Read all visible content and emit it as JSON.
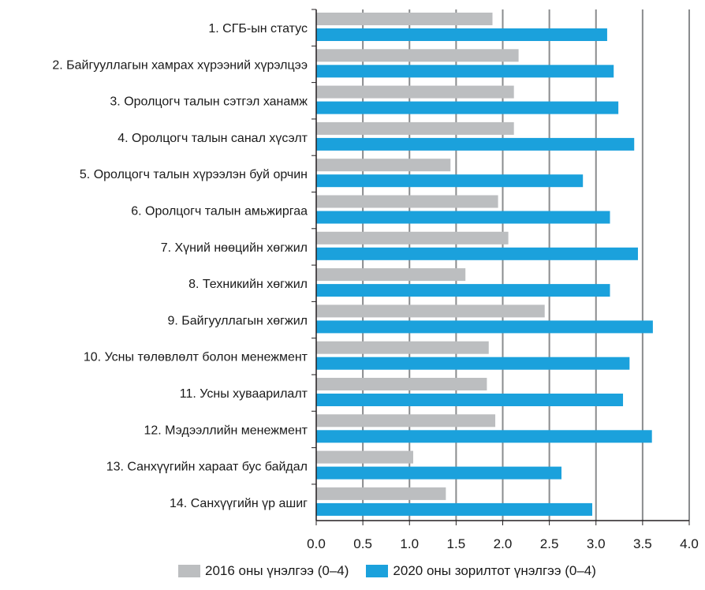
{
  "chart_data": {
    "type": "bar",
    "orientation": "horizontal",
    "categories": [
      "1.  СГБ-ын статус",
      "2.  Байгууллагын хамрах хүрээний хүрэлцээ",
      "3.  Оролцогч талын сэтгэл ханамж",
      "4.  Оролцогч талын санал хүсэлт",
      "5.  Оролцогч талын хүрээлэн буй орчин",
      "6.  Оролцогч талын амьжиргаа",
      "7.  Хүний нөөцийн хөгжил",
      "8.  Техникийн хөгжил",
      "9.  Байгууллагын хөгжил",
      "10.  Усны төлөвлөлт болон менежмент",
      "11.  Усны хуваарилалт",
      "12.  Мэдээллийн менежмент",
      "13.  Санхүүгийн хараат бус байдал",
      "14.  Санхүүгийн үр ашиг"
    ],
    "series": [
      {
        "name": "2016 оны үнэлгээ (0–4)",
        "color": "#bcbec0",
        "values": [
          1.89,
          2.17,
          2.12,
          2.12,
          1.44,
          1.95,
          2.06,
          1.6,
          2.45,
          1.85,
          1.83,
          1.92,
          1.04,
          1.39
        ]
      },
      {
        "name": "2020 оны зорилтот үнэлгээ (0–4)",
        "color": "#1ba1dc",
        "values": [
          3.12,
          3.19,
          3.24,
          3.41,
          2.86,
          3.15,
          3.45,
          3.15,
          3.61,
          3.36,
          3.29,
          3.6,
          2.63,
          2.96
        ]
      }
    ],
    "xlim": [
      0,
      4
    ],
    "xticks": [
      "0.0",
      "0.5",
      "1.0",
      "1.5",
      "2.0",
      "2.5",
      "3.0",
      "3.5",
      "4.0"
    ],
    "grid": true,
    "legend_position": "bottom"
  }
}
